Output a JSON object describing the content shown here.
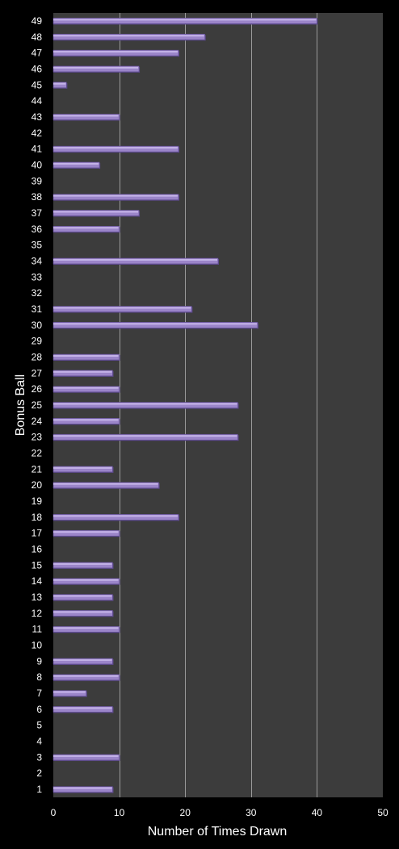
{
  "chart_data": {
    "type": "bar",
    "orientation": "horizontal",
    "xlabel": "Number of Times Drawn",
    "ylabel": "Bonus Ball",
    "xlim": [
      0,
      50
    ],
    "xticks": [
      0,
      10,
      20,
      30,
      40,
      50
    ],
    "grid": "vertical",
    "categories": [
      "1",
      "2",
      "3",
      "4",
      "5",
      "6",
      "7",
      "8",
      "9",
      "10",
      "11",
      "12",
      "13",
      "14",
      "15",
      "16",
      "17",
      "18",
      "19",
      "20",
      "21",
      "22",
      "23",
      "24",
      "25",
      "26",
      "27",
      "28",
      "29",
      "30",
      "31",
      "32",
      "33",
      "34",
      "35",
      "36",
      "37",
      "38",
      "39",
      "40",
      "41",
      "42",
      "43",
      "44",
      "45",
      "46",
      "47",
      "48",
      "49"
    ],
    "values": [
      9,
      0,
      10,
      0,
      0,
      9,
      5,
      10,
      9,
      0,
      10,
      9,
      9,
      10,
      9,
      0,
      10,
      19,
      0,
      16,
      9,
      0,
      28,
      10,
      28,
      10,
      9,
      10,
      0,
      31,
      21,
      0,
      0,
      25,
      0,
      10,
      13,
      19,
      0,
      7,
      19,
      0,
      10,
      0,
      2,
      13,
      19,
      23,
      40
    ],
    "colors": {
      "background": "#000000",
      "plot_area": "#3c3c3c",
      "gridline": "#9a9a9a",
      "bar_fill": "#9b85c9",
      "bar_edge": "#5d4a8e",
      "text": "#ffffff"
    }
  }
}
